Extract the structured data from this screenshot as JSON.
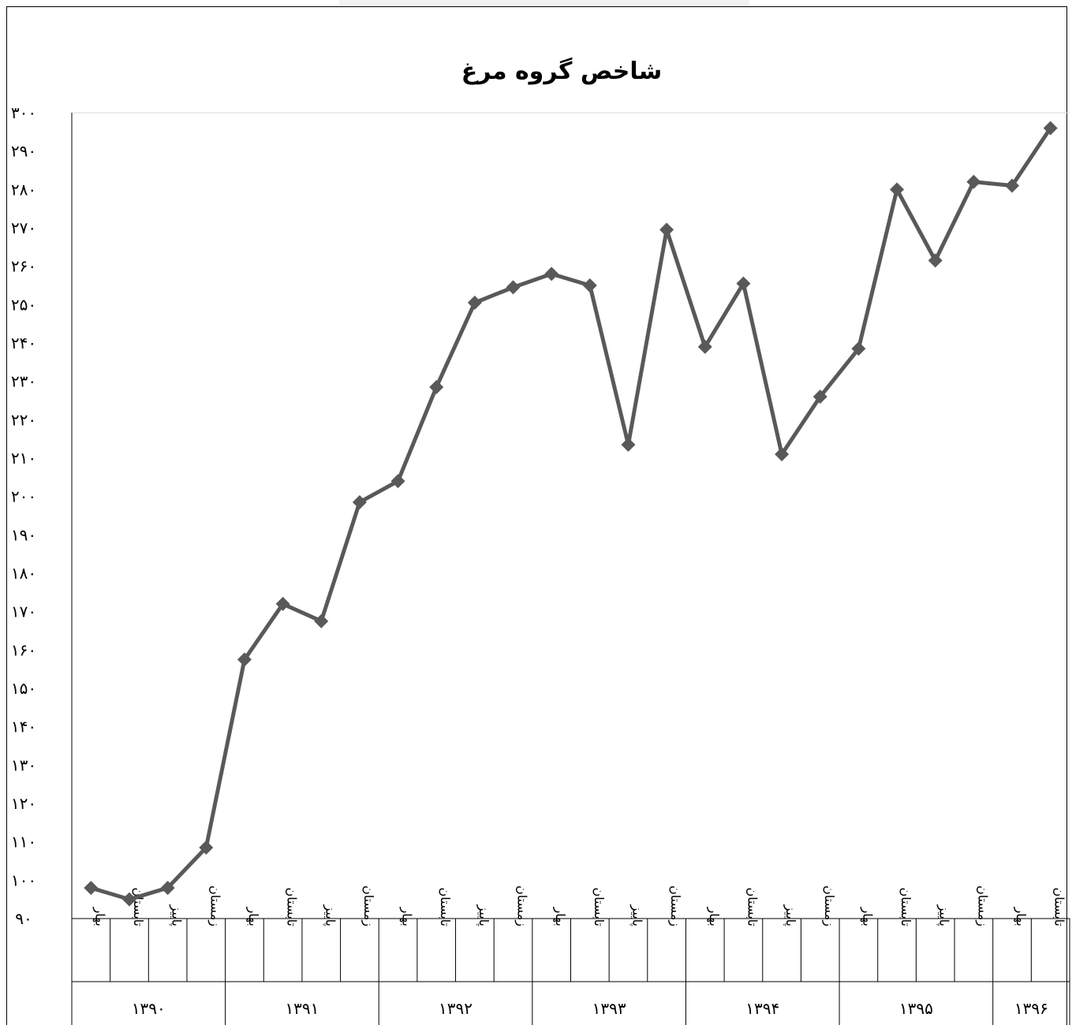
{
  "chart_data": {
    "type": "line",
    "title": "شاخص گروه مرغ",
    "xlabel": "",
    "ylabel": "",
    "ylim": [
      90,
      300
    ],
    "ytick_step": 10,
    "ytick_labels": [
      "۹۰",
      "۱۰۰",
      "۱۱۰",
      "۱۲۰",
      "۱۳۰",
      "۱۴۰",
      "۱۵۰",
      "۱۶۰",
      "۱۷۰",
      "۱۸۰",
      "۱۹۰",
      "۲۰۰",
      "۲۱۰",
      "۲۲۰",
      "۲۳۰",
      "۲۴۰",
      "۲۵۰",
      "۲۶۰",
      "۲۷۰",
      "۲۸۰",
      "۲۹۰",
      "۳۰۰"
    ],
    "grid": false,
    "legend": "none",
    "years": [
      {
        "label": "۱۳۹۰",
        "seasons": [
          "بهار",
          "تابستان",
          "پاییز",
          "زمستان"
        ]
      },
      {
        "label": "۱۳۹۱",
        "seasons": [
          "بهار",
          "تابستان",
          "پاییز",
          "زمستان"
        ]
      },
      {
        "label": "۱۳۹۲",
        "seasons": [
          "بهار",
          "تابستان",
          "پاییز",
          "زمستان"
        ]
      },
      {
        "label": "۱۳۹۳",
        "seasons": [
          "بهار",
          "تابستان",
          "پاییز",
          "زمستان"
        ]
      },
      {
        "label": "۱۳۹۴",
        "seasons": [
          "بهار",
          "تابستان",
          "پاییز",
          "زمستان"
        ]
      },
      {
        "label": "۱۳۹۵",
        "seasons": [
          "بهار",
          "تابستان",
          "پاییز",
          "زمستان"
        ]
      },
      {
        "label": "۱۳۹۶",
        "seasons": [
          "بهار",
          "تابستان"
        ]
      }
    ],
    "values": [
      98,
      95,
      98,
      108.5,
      157.5,
      172,
      167.5,
      198.5,
      204,
      228.5,
      250.5,
      254.5,
      258,
      255,
      213.5,
      269.5,
      239,
      255.5,
      211,
      226,
      238.5,
      280,
      261.5,
      282,
      281,
      296
    ],
    "series_color": "#595959"
  }
}
